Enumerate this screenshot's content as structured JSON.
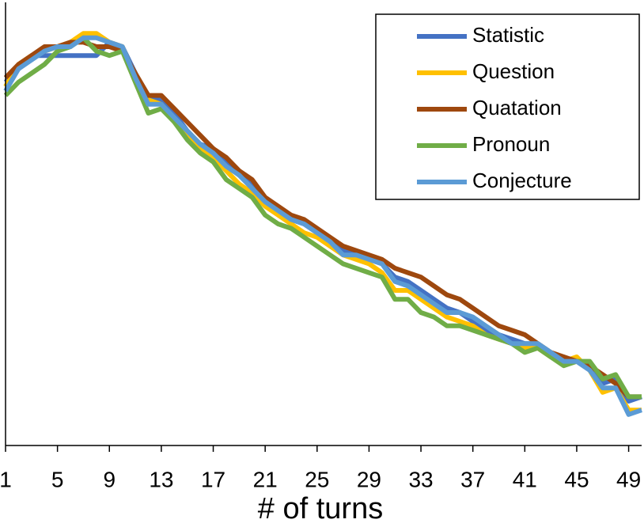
{
  "chart_data": {
    "type": "line",
    "x_label": "# of turns",
    "x": [
      1,
      2,
      3,
      4,
      5,
      6,
      7,
      8,
      9,
      10,
      11,
      12,
      13,
      14,
      15,
      16,
      17,
      18,
      19,
      20,
      21,
      22,
      23,
      24,
      25,
      26,
      27,
      28,
      29,
      30,
      31,
      32,
      33,
      34,
      35,
      36,
      37,
      38,
      39,
      40,
      41,
      42,
      43,
      44,
      45,
      46,
      47,
      48,
      49,
      50
    ],
    "xlim": [
      1,
      50
    ],
    "xticks": [
      1,
      5,
      9,
      13,
      17,
      21,
      25,
      29,
      33,
      37,
      41,
      45,
      49
    ],
    "ylim": [
      0,
      100
    ],
    "legend": "upper right",
    "series": [
      {
        "name": "Statistic",
        "color": "#4472c4",
        "values": [
          82,
          85,
          88,
          88,
          88,
          88,
          88,
          88,
          91,
          90,
          84,
          78,
          78,
          75,
          71,
          68,
          67,
          64,
          61,
          59,
          55,
          53,
          51,
          50,
          48,
          46,
          44,
          43,
          42,
          41,
          38,
          37,
          35,
          33,
          31,
          30,
          28,
          26,
          25,
          24,
          23,
          23,
          21,
          19,
          19,
          17,
          14,
          15,
          10,
          11
        ]
      },
      {
        "name": "Question",
        "color": "#ffc000",
        "values": [
          81,
          86,
          88,
          89,
          90,
          91,
          93,
          93,
          91,
          90,
          83,
          78,
          77,
          73,
          70,
          67,
          65,
          62,
          59,
          57,
          54,
          52,
          50,
          48,
          47,
          45,
          43,
          42,
          41,
          39,
          35,
          35,
          33,
          31,
          29,
          28,
          27,
          25,
          24,
          23,
          22,
          22,
          20,
          19,
          20,
          17,
          12,
          13,
          8,
          8
        ]
      },
      {
        "name": "Quatation",
        "color": "#9e480e",
        "values": [
          83,
          86,
          88,
          90,
          90,
          91,
          91,
          90,
          90,
          89,
          84,
          79,
          79,
          76,
          73,
          70,
          67,
          65,
          62,
          60,
          56,
          54,
          52,
          51,
          49,
          47,
          45,
          44,
          43,
          42,
          40,
          39,
          38,
          36,
          34,
          33,
          31,
          29,
          27,
          26,
          25,
          23,
          21,
          20,
          19,
          18,
          16,
          14,
          11,
          11
        ]
      },
      {
        "name": "Pronoun",
        "color": "#70ad47",
        "values": [
          79,
          82,
          84,
          86,
          89,
          90,
          92,
          89,
          88,
          89,
          82,
          75,
          76,
          73,
          69,
          66,
          64,
          60,
          58,
          56,
          52,
          50,
          49,
          47,
          45,
          43,
          41,
          40,
          39,
          38,
          33,
          33,
          30,
          29,
          27,
          27,
          26,
          25,
          24,
          23,
          21,
          22,
          20,
          18,
          19,
          19,
          15,
          16,
          11,
          11
        ]
      },
      {
        "name": "Conjecture",
        "color": "#5b9bd5",
        "values": [
          80,
          85,
          87,
          89,
          90,
          90,
          92,
          92,
          91,
          90,
          83,
          77,
          77,
          74,
          71,
          68,
          66,
          63,
          61,
          58,
          55,
          53,
          51,
          50,
          48,
          46,
          43,
          43,
          42,
          41,
          37,
          36,
          34,
          32,
          30,
          30,
          29,
          27,
          25,
          23,
          23,
          23,
          21,
          19,
          19,
          17,
          13,
          13,
          7,
          8
        ]
      }
    ]
  }
}
